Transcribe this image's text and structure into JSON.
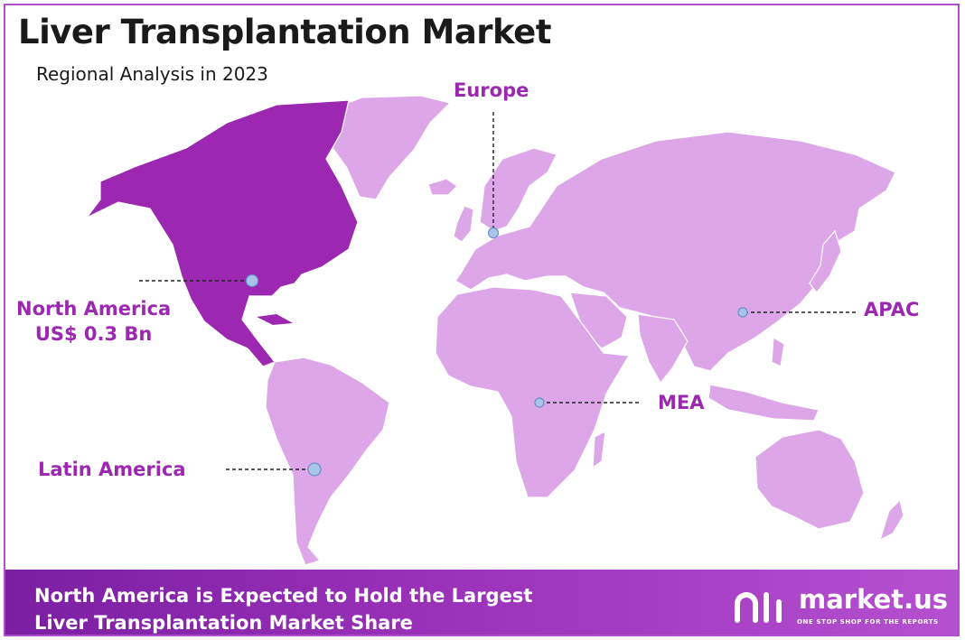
{
  "title": "Liver Transplantation Market",
  "subtitle": "Regional Analysis in 2023",
  "colors": {
    "highlight_region": "#9c27b0",
    "other_regions": "#dda6e8",
    "label": "#9c27b0",
    "marker": "#a9c4e8"
  },
  "regions": [
    {
      "name": "North America",
      "value": "US$ 0.3 Bn",
      "highlighted": true
    },
    {
      "name": "Europe",
      "highlighted": false
    },
    {
      "name": "APAC",
      "highlighted": false
    },
    {
      "name": "MEA",
      "highlighted": false
    },
    {
      "name": "Latin America",
      "highlighted": false
    }
  ],
  "footer": {
    "line1": "North America is Expected to Hold the Largest",
    "line2": "Liver Transplantation Market Share"
  },
  "logo": {
    "name": "market.us",
    "tagline": "ONE STOP SHOP FOR THE REPORTS"
  }
}
